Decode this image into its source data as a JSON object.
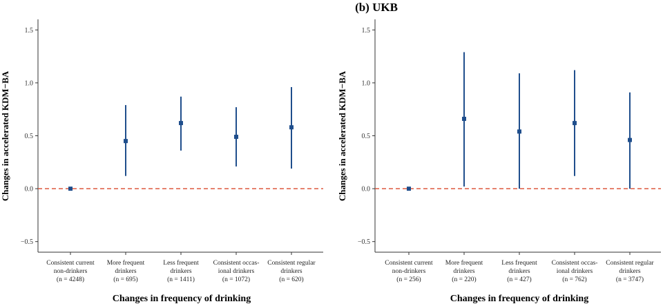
{
  "colors": {
    "point": "#1f4e8c",
    "reference_line": "#d9482b",
    "axis": "#333333"
  },
  "chart_data": [
    {
      "type": "scatter",
      "title": "",
      "xlabel": "Changes in frequency of drinking",
      "ylabel": "Changes in accelerated KDM−BA",
      "ylim": [
        -0.6,
        1.6
      ],
      "yticks": [
        -0.5,
        0.0,
        0.5,
        1.0,
        1.5
      ],
      "ytick_labels": [
        "−0.5",
        "0.0",
        "0.5",
        "1.0",
        "1.5"
      ],
      "reference_line": 0,
      "grid": false,
      "categories": [
        [
          "Consistent current",
          "non-drinkers",
          "(n = 4248)"
        ],
        [
          "More frequent",
          "drinkers",
          "(n = 695)"
        ],
        [
          "Less frequent",
          "drinkers",
          "(n = 1411)"
        ],
        [
          "Consistent occas-",
          "ional drinkers",
          "(n = 1072)"
        ],
        [
          "Consistent regular",
          "drinkers",
          "(n = 620)"
        ]
      ],
      "estimates": [
        0.0,
        0.45,
        0.62,
        0.49,
        0.58
      ],
      "lower": [
        0.0,
        0.12,
        0.36,
        0.21,
        0.19
      ],
      "upper": [
        0.0,
        0.79,
        0.87,
        0.77,
        0.96
      ]
    },
    {
      "type": "scatter",
      "title": "(b) UKB",
      "xlabel": "Changes in frequency of drinking",
      "ylabel": "Changes in accelerated KDM−BA",
      "ylim": [
        -0.6,
        1.6
      ],
      "yticks": [
        -0.5,
        0.0,
        0.5,
        1.0,
        1.5
      ],
      "ytick_labels": [
        "−0.5",
        "0.0",
        "0.5",
        "1.0",
        "1.5"
      ],
      "reference_line": 0,
      "grid": false,
      "categories": [
        [
          "Consistent current",
          "non-drinkers",
          "(n = 256)"
        ],
        [
          "More frequent",
          "drinkers",
          "(n = 220)"
        ],
        [
          "Less frequent",
          "drinkers",
          "(n = 427)"
        ],
        [
          "Consistent occas-",
          "ional drinkers",
          "(n = 762)"
        ],
        [
          "Consistent regular",
          "drinkers",
          "(n = 3747)"
        ]
      ],
      "estimates": [
        0.0,
        0.66,
        0.54,
        0.62,
        0.46
      ],
      "lower": [
        0.0,
        0.02,
        0.0,
        0.12,
        0.0
      ],
      "upper": [
        0.0,
        1.29,
        1.09,
        1.12,
        0.91
      ]
    }
  ]
}
